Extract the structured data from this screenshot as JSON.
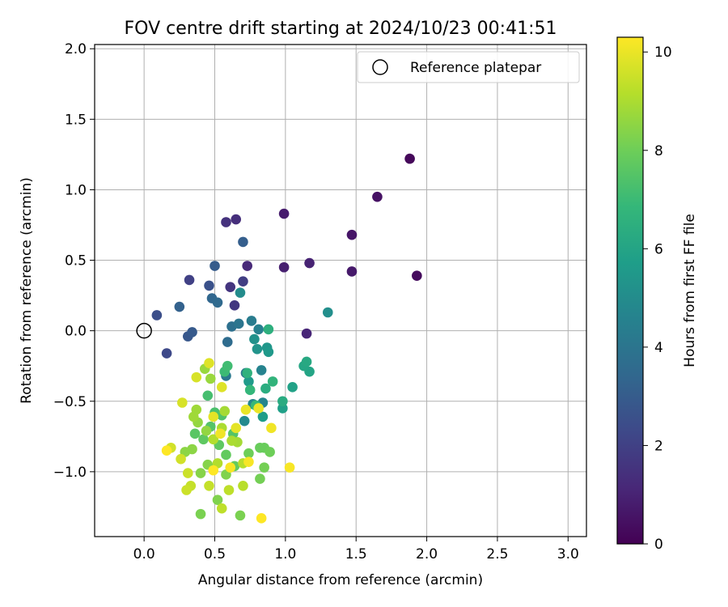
{
  "chart_data": {
    "type": "scatter",
    "title": "FOV centre drift starting at 2024/10/23 00:41:51",
    "xlabel": "Angular distance from reference (arcmin)",
    "ylabel": "Rotation from reference (arcmin)",
    "xlim": [
      -0.35,
      3.13
    ],
    "ylim": [
      -1.46,
      2.03
    ],
    "xticks": [
      "0.0",
      "0.5",
      "1.0",
      "1.5",
      "2.0",
      "2.5",
      "3.0"
    ],
    "yticks": [
      "−1.0",
      "−0.5",
      "0.0",
      "0.5",
      "1.0",
      "1.5",
      "2.0"
    ],
    "grid": true,
    "legend": {
      "placement": "top-right",
      "entries": [
        "Reference platepar"
      ]
    },
    "reference_point": {
      "x": 0.0,
      "y": 0.0
    },
    "colorbar": {
      "label": "Hours from first FF file",
      "range": [
        0,
        10.3
      ],
      "ticks": [
        "0",
        "2",
        "4",
        "6",
        "8",
        "10"
      ],
      "colormap": [
        "#440154",
        "#482878",
        "#3e4989",
        "#31688e",
        "#26828e",
        "#1f9e89",
        "#35b779",
        "#6ece58",
        "#b5de2b",
        "#fde725"
      ]
    },
    "points": [
      {
        "x": 1.88,
        "y": 1.22,
        "h": 0.2
      },
      {
        "x": 1.93,
        "y": 0.39,
        "h": 0.3
      },
      {
        "x": 1.65,
        "y": 0.95,
        "h": 0.5
      },
      {
        "x": 1.47,
        "y": 0.68,
        "h": 0.6
      },
      {
        "x": 1.47,
        "y": 0.42,
        "h": 0.7
      },
      {
        "x": 0.99,
        "y": 0.83,
        "h": 0.8
      },
      {
        "x": 0.99,
        "y": 0.45,
        "h": 0.9
      },
      {
        "x": 1.17,
        "y": 0.48,
        "h": 1.0
      },
      {
        "x": 1.15,
        "y": -0.02,
        "h": 1.1
      },
      {
        "x": 0.73,
        "y": 0.46,
        "h": 1.2
      },
      {
        "x": 0.65,
        "y": 0.79,
        "h": 1.4
      },
      {
        "x": 0.58,
        "y": 0.77,
        "h": 1.5
      },
      {
        "x": 0.61,
        "y": 0.31,
        "h": 1.6
      },
      {
        "x": 0.64,
        "y": 0.18,
        "h": 1.7
      },
      {
        "x": 0.7,
        "y": 0.35,
        "h": 1.9
      },
      {
        "x": 0.32,
        "y": 0.36,
        "h": 2.0
      },
      {
        "x": 0.16,
        "y": -0.16,
        "h": 2.3
      },
      {
        "x": 0.09,
        "y": 0.11,
        "h": 2.5
      },
      {
        "x": 0.46,
        "y": 0.32,
        "h": 2.6
      },
      {
        "x": 0.31,
        "y": -0.04,
        "h": 2.8
      },
      {
        "x": 0.34,
        "y": -0.01,
        "h": 2.9
      },
      {
        "x": 0.5,
        "y": 0.46,
        "h": 3.0
      },
      {
        "x": 0.7,
        "y": 0.63,
        "h": 3.1
      },
      {
        "x": 0.25,
        "y": 0.17,
        "h": 3.2
      },
      {
        "x": 0.48,
        "y": 0.23,
        "h": 3.4
      },
      {
        "x": 0.52,
        "y": 0.2,
        "h": 3.5
      },
      {
        "x": 0.59,
        "y": -0.08,
        "h": 3.6
      },
      {
        "x": 0.62,
        "y": 0.03,
        "h": 3.8
      },
      {
        "x": 0.67,
        "y": 0.05,
        "h": 4.0
      },
      {
        "x": 0.72,
        "y": -0.3,
        "h": 4.1
      },
      {
        "x": 0.58,
        "y": -0.32,
        "h": 4.2
      },
      {
        "x": 0.76,
        "y": 0.07,
        "h": 4.3
      },
      {
        "x": 0.81,
        "y": 0.01,
        "h": 4.5
      },
      {
        "x": 0.83,
        "y": -0.28,
        "h": 4.6
      },
      {
        "x": 0.84,
        "y": -0.51,
        "h": 4.7
      },
      {
        "x": 0.77,
        "y": -0.52,
        "h": 4.8
      },
      {
        "x": 0.71,
        "y": -0.64,
        "h": 4.9
      },
      {
        "x": 0.68,
        "y": 0.27,
        "h": 5.0
      },
      {
        "x": 1.3,
        "y": 0.13,
        "h": 5.1
      },
      {
        "x": 0.78,
        "y": -0.06,
        "h": 5.2
      },
      {
        "x": 0.8,
        "y": -0.13,
        "h": 5.3
      },
      {
        "x": 0.87,
        "y": -0.12,
        "h": 5.4
      },
      {
        "x": 0.88,
        "y": -0.15,
        "h": 5.5
      },
      {
        "x": 0.74,
        "y": -0.36,
        "h": 5.6
      },
      {
        "x": 0.84,
        "y": -0.61,
        "h": 5.7
      },
      {
        "x": 0.98,
        "y": -0.55,
        "h": 5.8
      },
      {
        "x": 1.05,
        "y": -0.4,
        "h": 5.9
      },
      {
        "x": 1.17,
        "y": -0.29,
        "h": 6.0
      },
      {
        "x": 1.13,
        "y": -0.25,
        "h": 6.1
      },
      {
        "x": 1.15,
        "y": -0.22,
        "h": 6.2
      },
      {
        "x": 0.98,
        "y": -0.5,
        "h": 6.3
      },
      {
        "x": 0.86,
        "y": -0.41,
        "h": 6.4
      },
      {
        "x": 0.88,
        "y": 0.01,
        "h": 6.5
      },
      {
        "x": 0.73,
        "y": -0.3,
        "h": 6.6
      },
      {
        "x": 0.91,
        "y": -0.36,
        "h": 6.7
      },
      {
        "x": 0.75,
        "y": -0.42,
        "h": 6.8
      },
      {
        "x": 0.79,
        "y": -0.53,
        "h": 6.9
      },
      {
        "x": 0.57,
        "y": -0.29,
        "h": 7.0
      },
      {
        "x": 0.59,
        "y": -0.25,
        "h": 7.1
      },
      {
        "x": 0.45,
        "y": -0.46,
        "h": 7.2
      },
      {
        "x": 0.5,
        "y": -0.58,
        "h": 7.3
      },
      {
        "x": 0.55,
        "y": -0.6,
        "h": 7.4
      },
      {
        "x": 0.47,
        "y": -0.68,
        "h": 7.5
      },
      {
        "x": 0.63,
        "y": -0.73,
        "h": 7.5
      },
      {
        "x": 0.36,
        "y": -0.73,
        "h": 7.6
      },
      {
        "x": 0.42,
        "y": -0.77,
        "h": 7.7
      },
      {
        "x": 0.53,
        "y": -0.81,
        "h": 7.7
      },
      {
        "x": 0.58,
        "y": -0.88,
        "h": 7.8
      },
      {
        "x": 0.64,
        "y": -0.96,
        "h": 7.8
      },
      {
        "x": 0.82,
        "y": -0.83,
        "h": 7.9
      },
      {
        "x": 0.85,
        "y": -0.83,
        "h": 7.9
      },
      {
        "x": 0.89,
        "y": -0.86,
        "h": 8.0
      },
      {
        "x": 0.74,
        "y": -0.87,
        "h": 8.0
      },
      {
        "x": 0.85,
        "y": -0.97,
        "h": 8.1
      },
      {
        "x": 0.82,
        "y": -1.05,
        "h": 8.1
      },
      {
        "x": 0.68,
        "y": -1.31,
        "h": 8.2
      },
      {
        "x": 0.4,
        "y": -1.3,
        "h": 8.2
      },
      {
        "x": 0.52,
        "y": -1.2,
        "h": 8.3
      },
      {
        "x": 0.58,
        "y": -1.02,
        "h": 8.3
      },
      {
        "x": 0.45,
        "y": -0.95,
        "h": 8.4
      },
      {
        "x": 0.4,
        "y": -1.01,
        "h": 8.4
      },
      {
        "x": 0.34,
        "y": -0.84,
        "h": 8.5
      },
      {
        "x": 0.29,
        "y": -0.86,
        "h": 8.5
      },
      {
        "x": 0.38,
        "y": -0.65,
        "h": 8.6
      },
      {
        "x": 0.44,
        "y": -0.71,
        "h": 8.6
      },
      {
        "x": 0.47,
        "y": -0.34,
        "h": 8.7
      },
      {
        "x": 0.43,
        "y": -0.27,
        "h": 8.7
      },
      {
        "x": 0.37,
        "y": -0.56,
        "h": 8.8
      },
      {
        "x": 0.35,
        "y": -0.61,
        "h": 8.8
      },
      {
        "x": 0.57,
        "y": -0.57,
        "h": 8.9
      },
      {
        "x": 0.66,
        "y": -0.79,
        "h": 8.9
      },
      {
        "x": 0.62,
        "y": -0.78,
        "h": 9.0
      },
      {
        "x": 0.55,
        "y": -0.69,
        "h": 9.0
      },
      {
        "x": 0.49,
        "y": -0.77,
        "h": 9.1
      },
      {
        "x": 0.52,
        "y": -0.94,
        "h": 9.1
      },
      {
        "x": 0.7,
        "y": -0.94,
        "h": 9.2
      },
      {
        "x": 0.7,
        "y": -1.1,
        "h": 9.2
      },
      {
        "x": 0.6,
        "y": -1.13,
        "h": 9.3
      },
      {
        "x": 0.55,
        "y": -1.26,
        "h": 9.3
      },
      {
        "x": 0.46,
        "y": -1.1,
        "h": 9.4
      },
      {
        "x": 0.33,
        "y": -1.1,
        "h": 9.4
      },
      {
        "x": 0.3,
        "y": -1.13,
        "h": 9.5
      },
      {
        "x": 0.31,
        "y": -1.01,
        "h": 9.5
      },
      {
        "x": 0.26,
        "y": -0.91,
        "h": 9.6
      },
      {
        "x": 0.19,
        "y": -0.83,
        "h": 9.6
      },
      {
        "x": 0.27,
        "y": -0.51,
        "h": 9.7
      },
      {
        "x": 0.37,
        "y": -0.33,
        "h": 9.7
      },
      {
        "x": 0.55,
        "y": -0.4,
        "h": 9.8
      },
      {
        "x": 0.46,
        "y": -0.23,
        "h": 9.8
      },
      {
        "x": 0.49,
        "y": -0.61,
        "h": 9.9
      },
      {
        "x": 0.65,
        "y": -0.69,
        "h": 9.9
      },
      {
        "x": 0.72,
        "y": -0.56,
        "h": 10.0
      },
      {
        "x": 0.81,
        "y": -0.55,
        "h": 10.0
      },
      {
        "x": 0.9,
        "y": -0.69,
        "h": 10.1
      },
      {
        "x": 0.54,
        "y": -0.73,
        "h": 10.1
      },
      {
        "x": 0.61,
        "y": -0.97,
        "h": 10.2
      },
      {
        "x": 0.74,
        "y": -0.93,
        "h": 10.2
      },
      {
        "x": 1.03,
        "y": -0.97,
        "h": 10.2
      },
      {
        "x": 0.83,
        "y": -1.33,
        "h": 10.3
      },
      {
        "x": 0.16,
        "y": -0.85,
        "h": 10.3
      },
      {
        "x": 0.49,
        "y": -0.99,
        "h": 10.3
      }
    ]
  }
}
